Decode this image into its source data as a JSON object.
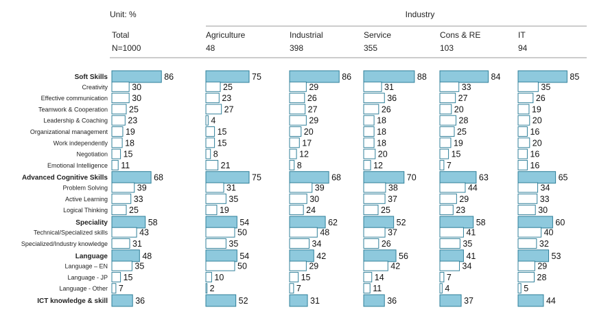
{
  "unit_label": "Unit: %",
  "industry_label": "Industry",
  "colors": {
    "category_fill": "#8ec9dd",
    "sub_fill": "#ffffff",
    "bar_stroke": "#2f7f99",
    "rule": "#999999"
  },
  "chart_data": {
    "type": "bar",
    "orientation": "horizontal",
    "columns": [
      {
        "name": "Total",
        "n": "N=1000"
      },
      {
        "name": "Agriculture",
        "n": "48"
      },
      {
        "name": "Industrial",
        "n": "398"
      },
      {
        "name": "Service",
        "n": "355"
      },
      {
        "name": "Cons & RE",
        "n": "103"
      },
      {
        "name": "IT",
        "n": "94"
      }
    ],
    "rows": [
      {
        "label": "Soft Skills",
        "category": true,
        "values": [
          86,
          75,
          86,
          88,
          84,
          85
        ]
      },
      {
        "label": "Creativity",
        "category": false,
        "values": [
          30,
          25,
          29,
          31,
          33,
          35
        ]
      },
      {
        "label": "Effective communication",
        "category": false,
        "values": [
          30,
          23,
          26,
          36,
          27,
          26
        ]
      },
      {
        "label": "Teamwork & Cooperation",
        "category": false,
        "values": [
          25,
          27,
          27,
          26,
          20,
          19
        ]
      },
      {
        "label": "Leadership & Coaching",
        "category": false,
        "values": [
          23,
          4,
          29,
          18,
          28,
          20
        ]
      },
      {
        "label": "Organizational management",
        "category": false,
        "values": [
          19,
          15,
          20,
          18,
          25,
          16
        ]
      },
      {
        "label": "Work independently",
        "category": false,
        "values": [
          18,
          15,
          17,
          18,
          19,
          20
        ]
      },
      {
        "label": "Negotiation",
        "category": false,
        "values": [
          15,
          8,
          12,
          20,
          15,
          16
        ]
      },
      {
        "label": "Emotional Intelligence",
        "category": false,
        "values": [
          11,
          21,
          8,
          12,
          7,
          16
        ]
      },
      {
        "label": "Advanced Cognitive Skills",
        "category": true,
        "values": [
          68,
          75,
          68,
          70,
          63,
          65
        ]
      },
      {
        "label": "Problem Solving",
        "category": false,
        "values": [
          39,
          31,
          39,
          38,
          44,
          34
        ]
      },
      {
        "label": "Active Learning",
        "category": false,
        "values": [
          33,
          35,
          30,
          37,
          29,
          33
        ]
      },
      {
        "label": "Logical Thinking",
        "category": false,
        "values": [
          25,
          19,
          24,
          25,
          23,
          30
        ]
      },
      {
        "label": "Speciality",
        "category": true,
        "values": [
          58,
          54,
          62,
          52,
          58,
          60
        ]
      },
      {
        "label": "Technical/Specialized skills",
        "category": false,
        "values": [
          43,
          50,
          48,
          37,
          41,
          40
        ]
      },
      {
        "label": "Specialized/Industry knowledge",
        "category": false,
        "values": [
          31,
          35,
          34,
          26,
          35,
          32
        ]
      },
      {
        "label": "Language",
        "category": true,
        "values": [
          48,
          54,
          42,
          56,
          41,
          53
        ]
      },
      {
        "label": "Language – EN",
        "category": false,
        "values": [
          35,
          50,
          29,
          42,
          34,
          29
        ]
      },
      {
        "label": "Language - JP",
        "category": false,
        "values": [
          15,
          10,
          15,
          14,
          7,
          28
        ]
      },
      {
        "label": "Language - Other",
        "category": false,
        "values": [
          7,
          2,
          7,
          11,
          4,
          5
        ]
      },
      {
        "label": "ICT knowledge & skill",
        "category": true,
        "values": [
          36,
          52,
          31,
          36,
          37,
          44
        ]
      }
    ],
    "xlim": [
      0,
      100
    ]
  }
}
